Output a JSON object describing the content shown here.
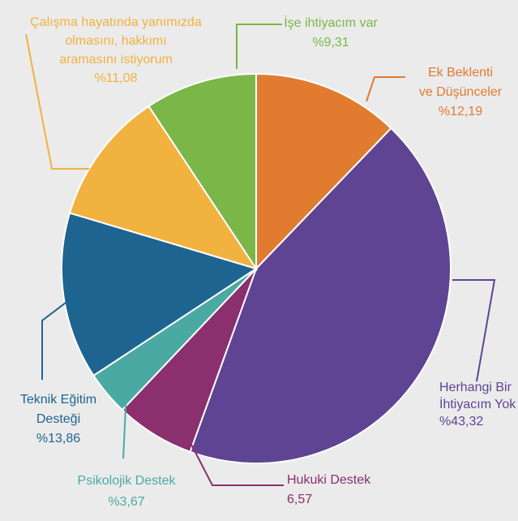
{
  "chart_data": {
    "type": "pie",
    "title": "",
    "start": "12 o'clock, clockwise",
    "slices": [
      {
        "key": "ek",
        "lines": [
          "Ek Beklenti",
          "ve Düşünceler"
        ],
        "value_label": "%12,19",
        "value": 12.19,
        "color": "#e07b30"
      },
      {
        "key": "herhangi",
        "lines": [
          "Herhangi Bir",
          "İhtiyacım Yok"
        ],
        "value_label": "%43,32",
        "value": 43.32,
        "color": "#5e4492"
      },
      {
        "key": "hukuki",
        "lines": [
          "Hukuki Destek"
        ],
        "value_label": "6,57",
        "value": 6.57,
        "color": "#8b2f6e"
      },
      {
        "key": "psikolojik",
        "lines": [
          "Psikolojik Destek"
        ],
        "value_label": "%3,67",
        "value": 3.67,
        "color": "#4aaaa3"
      },
      {
        "key": "teknik",
        "lines": [
          "Teknik Eğitim",
          "Desteği"
        ],
        "value_label": "%13,86",
        "value": 13.86,
        "color": "#1e6490"
      },
      {
        "key": "calisma",
        "lines": [
          "Çalışma hayatında yanımızda",
          "olmasını, hakkımı",
          "aramasını istiyorum"
        ],
        "value_label": "%11,08",
        "value": 11.08,
        "color": "#f1b23f"
      },
      {
        "key": "ise",
        "lines": [
          "İşe ihtiyacım var"
        ],
        "value_label": "%9,31",
        "value": 9.31,
        "color": "#7ab648"
      }
    ]
  }
}
